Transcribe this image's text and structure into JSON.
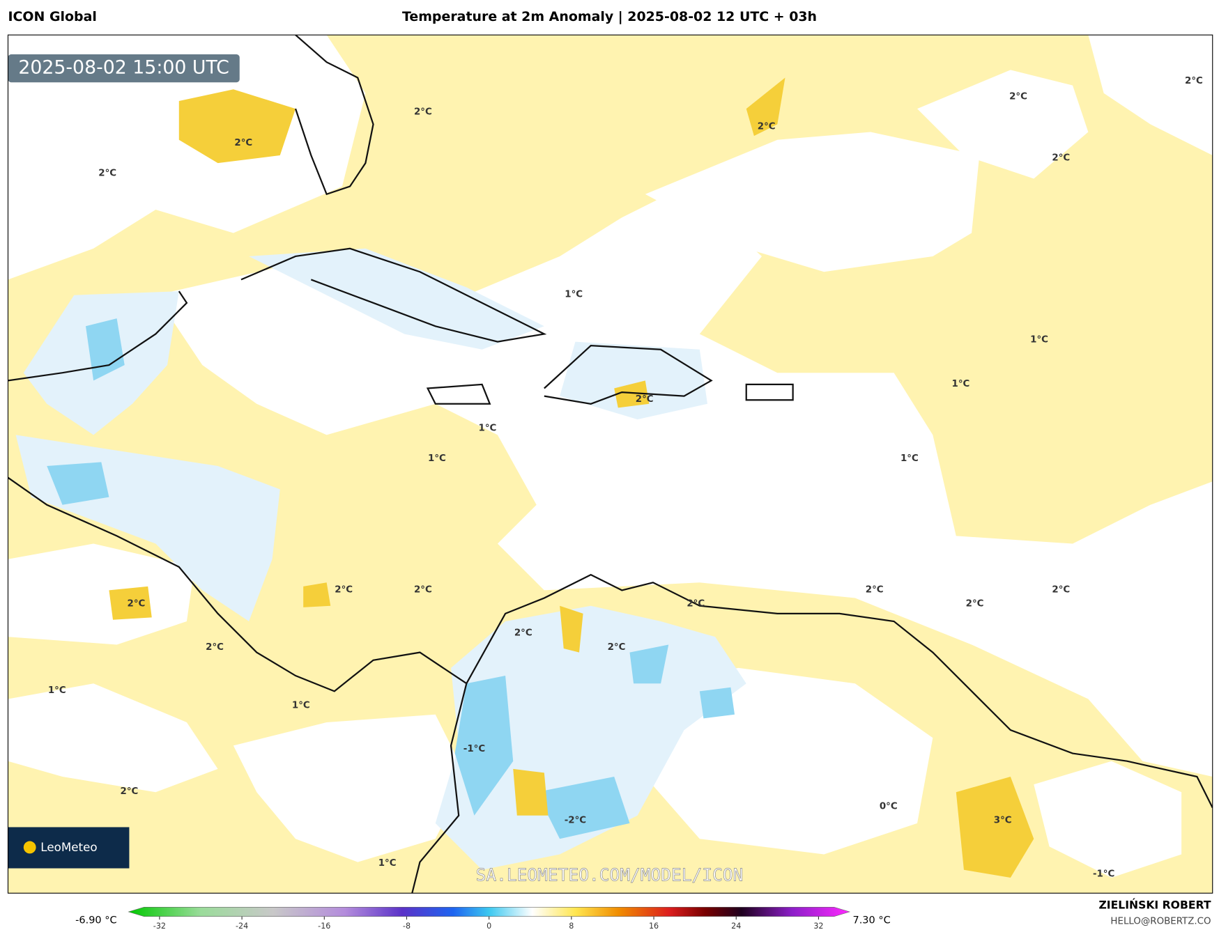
{
  "header": {
    "model": "ICON Global",
    "title": "Temperature at 2m Anomaly | 2025-08-02 12 UTC + 03h"
  },
  "map": {
    "valid_time": "2025-08-02 15:00 UTC",
    "watermark": "SA.LEOMETEO.COM/MODEL/ICON",
    "logo": "LeoMeteo",
    "contour_labels": [
      "2°C",
      "2°C",
      "2°C",
      "2°C",
      "2°C",
      "2°C",
      "2°C",
      "1°C",
      "1°C",
      "1°C",
      "2°C",
      "1°C",
      "1°C",
      "1°C",
      "2°C",
      "2°C",
      "2°C",
      "2°C",
      "2°C",
      "2°C",
      "2°C",
      "2°C",
      "2°C",
      "2°C",
      "1°C",
      "1°C",
      "-1°C",
      "2°C",
      "-2°C",
      "0°C",
      "3°C",
      "1°C",
      "-1°C"
    ]
  },
  "colorbar": {
    "min_label": "-6.90 °C",
    "max_label": "7.30 °C",
    "ticks": [
      -32,
      -24,
      -16,
      -8,
      0,
      8,
      16,
      24,
      32
    ]
  },
  "footer": {
    "author": "ZIELIŃSKI ROBERT",
    "email": "HELLO@ROBERTZ.CO"
  }
}
